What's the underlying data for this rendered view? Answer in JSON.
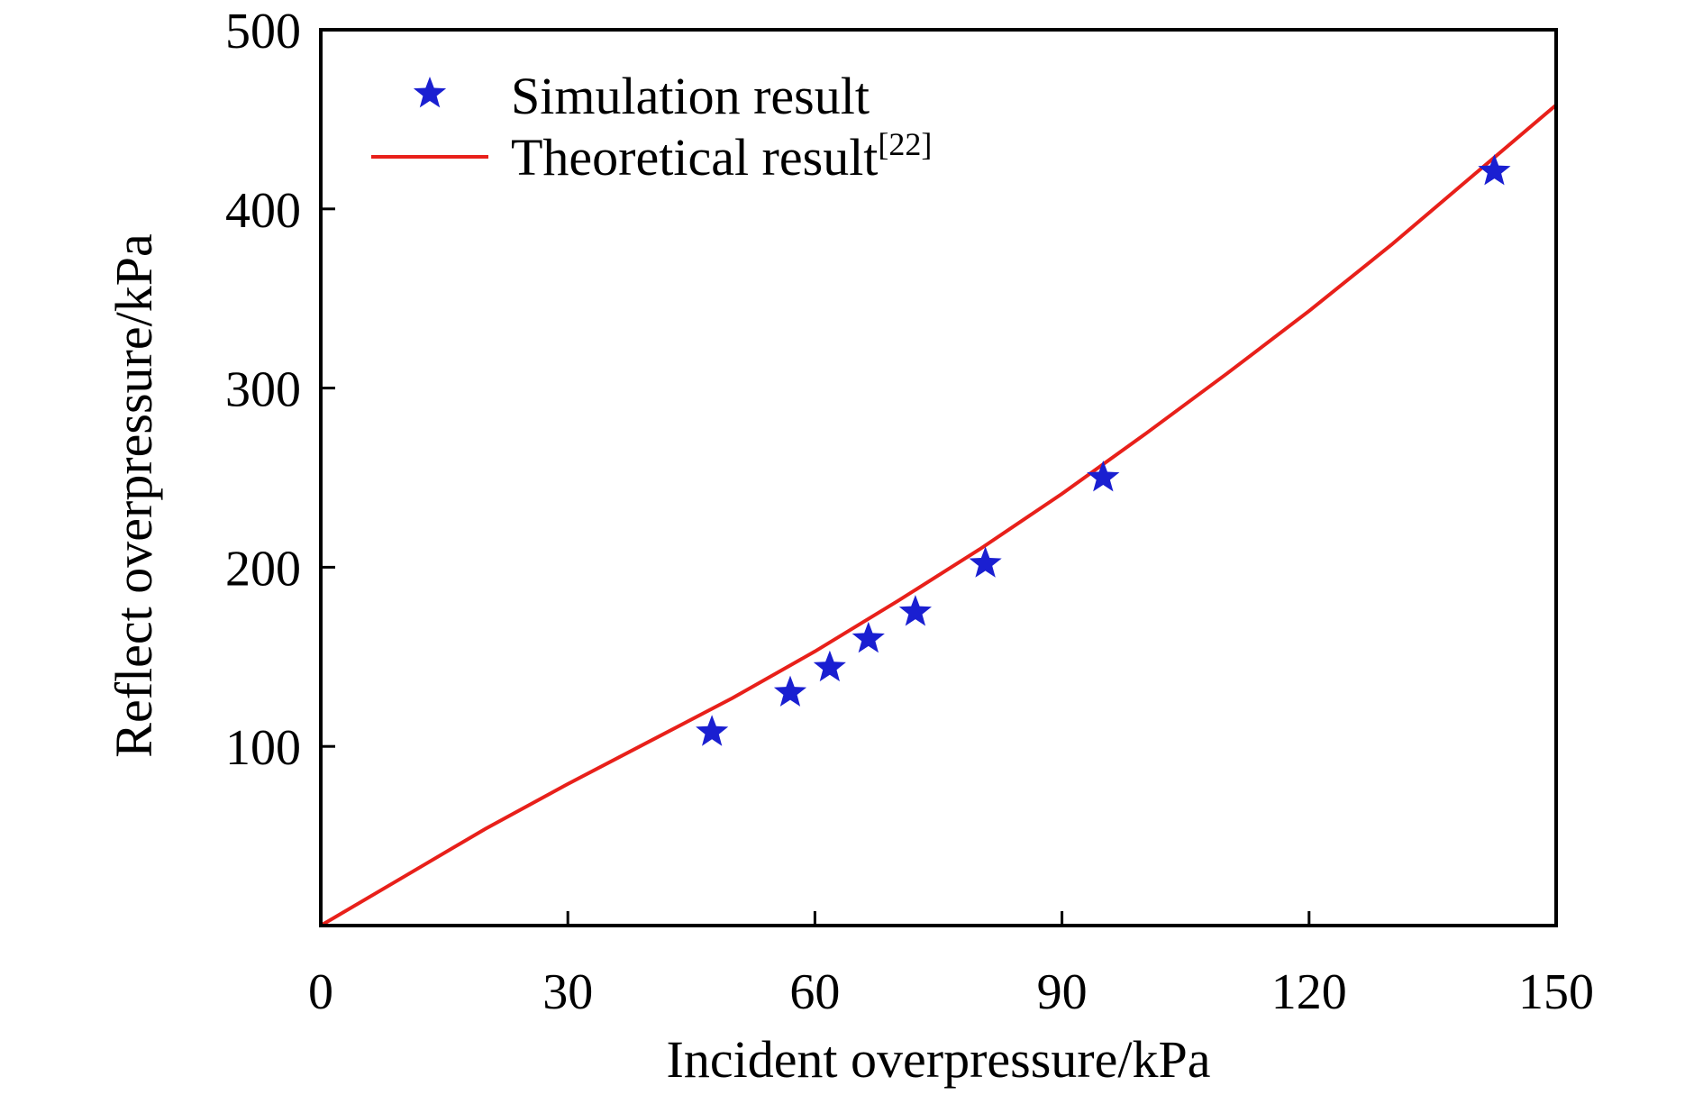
{
  "chart_data": {
    "type": "scatter",
    "xlabel": "Incident overpressure/kPa",
    "ylabel": "Reflect overpressure/kPa",
    "xlim": [
      0,
      150
    ],
    "ylim": [
      0,
      500
    ],
    "xticks": [
      0,
      30,
      60,
      90,
      120,
      150
    ],
    "yticks": [
      100,
      200,
      300,
      400,
      500
    ],
    "xtick_labels": [
      "0",
      "30",
      "60",
      "90",
      "120",
      "150"
    ],
    "ytick_labels": [
      "100",
      "200",
      "300",
      "400",
      "500"
    ],
    "grid": false,
    "legend_position": "top-left",
    "series": [
      {
        "name": "Simulation result",
        "kind": "scatter",
        "marker": "star",
        "color": "#1a1fd1",
        "x": [
          47.5,
          57,
          61.8,
          66.5,
          72.2,
          80.7,
          95,
          142.5
        ],
        "y": [
          108,
          130,
          144,
          160,
          175,
          202,
          250,
          421
        ]
      },
      {
        "name": "Theoretical result",
        "name_superscript": "[22]",
        "kind": "line",
        "color": "#e8201a",
        "x": [
          0,
          10,
          20,
          30,
          40,
          50,
          60,
          70,
          80,
          90,
          100,
          110,
          120,
          130,
          140,
          150
        ],
        "y": [
          0,
          27,
          54,
          79,
          103,
          127,
          153,
          181,
          210,
          241,
          274,
          308,
          343,
          380,
          419,
          458
        ]
      }
    ]
  }
}
